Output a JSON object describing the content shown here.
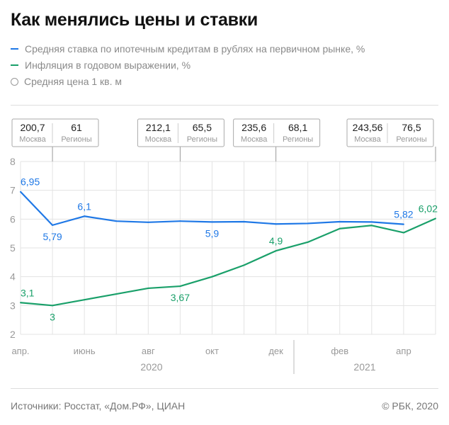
{
  "title": "Как менялись цены и ставки",
  "legend": [
    {
      "label": "Средняя ставка по ипотечным кредитам в рублях на первичном рынке, %",
      "color": "#1f78e6",
      "icon": "line"
    },
    {
      "label": "Инфляция в годовом выражении, %",
      "color": "#1aa06a",
      "icon": "line"
    },
    {
      "label": "Средняя цена 1 кв. м",
      "color": "#999999",
      "icon": "circle"
    }
  ],
  "footer": {
    "source": "Источники: Росстат, «Дом.РФ», ЦИАН",
    "copyright": "© РБК, 2020"
  },
  "chart_data": {
    "type": "line",
    "title": "Как менялись цены и ставки",
    "x": [
      "апр 2020",
      "май 2020",
      "июн 2020",
      "июл 2020",
      "авг 2020",
      "сен 2020",
      "окт 2020",
      "ноя 2020",
      "дек 2020",
      "янв 2021",
      "фев 2021",
      "мар 2021",
      "апр 2021",
      "май 2021"
    ],
    "tick_labels": [
      {
        "i": 0,
        "label": "апр."
      },
      {
        "i": 2,
        "label": "июнь"
      },
      {
        "i": 4,
        "label": "авг"
      },
      {
        "i": 6,
        "label": "окт"
      },
      {
        "i": 8,
        "label": "дек"
      },
      {
        "i": 10,
        "label": "фев"
      },
      {
        "i": 12,
        "label": "апр"
      }
    ],
    "year_labels": [
      {
        "label": "2020"
      },
      {
        "label": "2021"
      }
    ],
    "ylim": [
      2,
      8
    ],
    "yticks": [
      2,
      3,
      4,
      5,
      6,
      7,
      8
    ],
    "grid": true,
    "series": [
      {
        "name": "Средняя ставка по ипотечным кредитам в рублях на первичном рынке, %",
        "color": "#1f78e6",
        "values": [
          6.95,
          5.79,
          6.1,
          5.93,
          5.89,
          5.93,
          5.9,
          5.91,
          5.83,
          5.85,
          5.91,
          5.9,
          5.82,
          null
        ],
        "labels": [
          {
            "i": 0,
            "text": "6,95",
            "pos": "above"
          },
          {
            "i": 1,
            "text": "5,79",
            "pos": "below"
          },
          {
            "i": 2,
            "text": "6,1",
            "pos": "above"
          },
          {
            "i": 6,
            "text": "5,9",
            "pos": "below"
          },
          {
            "i": 12,
            "text": "5,82",
            "pos": "above"
          }
        ]
      },
      {
        "name": "Инфляция в годовом выражении, %",
        "color": "#1aa06a",
        "values": [
          3.1,
          3.0,
          3.2,
          3.4,
          3.6,
          3.67,
          4.0,
          4.4,
          4.9,
          5.2,
          5.67,
          5.78,
          5.53,
          6.02
        ],
        "labels": [
          {
            "i": 0,
            "text": "3,1",
            "pos": "above"
          },
          {
            "i": 1,
            "text": "3",
            "pos": "below"
          },
          {
            "i": 5,
            "text": "3,67",
            "pos": "below"
          },
          {
            "i": 8,
            "text": "4,9",
            "pos": "above"
          },
          {
            "i": 13,
            "text": "6,02",
            "pos": "above"
          }
        ]
      }
    ],
    "price_boxes": [
      {
        "i": 1,
        "moscow": "200,7",
        "regions": "61"
      },
      {
        "i": 5,
        "moscow": "212,1",
        "regions": "65,5"
      },
      {
        "i": 8,
        "moscow": "235,6",
        "regions": "68,1"
      },
      {
        "i": 13,
        "moscow": "243,56",
        "regions": "76,5"
      }
    ],
    "price_box_labels": {
      "moscow": "Москва",
      "regions": "Регионы"
    }
  }
}
